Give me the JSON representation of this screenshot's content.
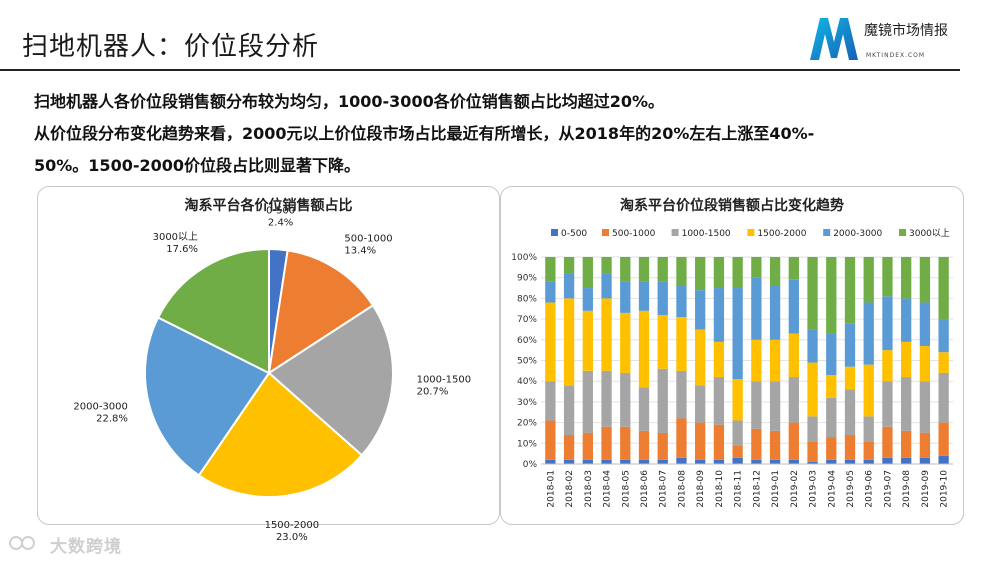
{
  "page": {
    "title": "扫地机器人：价位段分析",
    "logo_text": "魔镜市场情报",
    "logo_sub": "MKTINDEX.COM",
    "paragraphs": [
      "扫地机器人各价位段销售额分布较为均匀，1000-3000各价位销售额占比均超过20%。",
      "从价位段分布变化趋势来看，2000元以上价位段市场占比最近有所增长，从2018年的20%左右上涨至40%-",
      "50%。1500-2000价位段占比则显著下降。"
    ],
    "watermark": "大数跨境"
  },
  "colors": {
    "0-500": "#4472C4",
    "500-1000": "#ED7D31",
    "1000-1500": "#A5A5A5",
    "1500-2000": "#FFC000",
    "2000-3000": "#5B9BD5",
    "3000以上": "#70AD47"
  },
  "chart_data": [
    {
      "type": "pie",
      "title": "淘系平台各价位销售额占比",
      "slices": [
        {
          "label": "0-500",
          "value": 2.4,
          "display": "2.4%"
        },
        {
          "label": "500-1000",
          "value": 13.4,
          "display": "13.4%"
        },
        {
          "label": "1000-1500",
          "value": 20.7,
          "display": "20.7%"
        },
        {
          "label": "1500-2000",
          "value": 23.0,
          "display": "23.0%"
        },
        {
          "label": "2000-3000",
          "value": 22.8,
          "display": "22.8%"
        },
        {
          "label": "3000以上",
          "value": 17.6,
          "display": "17.6%"
        }
      ]
    },
    {
      "type": "bar",
      "stacked": "percent",
      "title": "淘系平台价位段销售额占比变化趋势",
      "categories": [
        "2018-01",
        "2018-02",
        "2018-03",
        "2018-04",
        "2018-05",
        "2018-06",
        "2018-07",
        "2018-08",
        "2018-09",
        "2018-10",
        "2018-11",
        "2018-12",
        "2019-01",
        "2019-02",
        "2019-03",
        "2019-04",
        "2019-05",
        "2019-06",
        "2019-07",
        "2019-08",
        "2019-09",
        "2019-10"
      ],
      "yticks": [
        "0%",
        "10%",
        "20%",
        "30%",
        "40%",
        "50%",
        "60%",
        "70%",
        "80%",
        "90%",
        "100%"
      ],
      "ylim": [
        0,
        100
      ],
      "legend_position": "top",
      "series": [
        {
          "name": "0-500",
          "values": [
            2,
            2,
            2,
            2,
            2,
            2,
            2,
            3,
            2,
            2,
            3,
            2,
            2,
            2,
            1,
            2,
            2,
            2,
            3,
            3,
            3,
            4
          ]
        },
        {
          "name": "500-1000",
          "values": [
            19,
            12,
            13,
            16,
            16,
            14,
            13,
            19,
            18,
            17,
            6,
            15,
            14,
            18,
            10,
            11,
            12,
            9,
            15,
            13,
            12,
            16
          ]
        },
        {
          "name": "1000-1500",
          "values": [
            19,
            24,
            30,
            27,
            26,
            21,
            31,
            23,
            18,
            23,
            12,
            23,
            24,
            22,
            12,
            19,
            22,
            12,
            22,
            26,
            25,
            24
          ]
        },
        {
          "name": "1500-2000",
          "values": [
            38,
            42,
            29,
            35,
            29,
            37,
            26,
            26,
            27,
            17,
            20,
            20,
            20,
            21,
            26,
            11,
            11,
            25,
            15,
            17,
            17,
            10
          ]
        },
        {
          "name": "2000-3000",
          "values": [
            10,
            12,
            11,
            12,
            15,
            14,
            16,
            15,
            19,
            26,
            44,
            30,
            26,
            26,
            16,
            20,
            21,
            30,
            26,
            21,
            21,
            16
          ]
        },
        {
          "name": "3000以上",
          "values": [
            12,
            8,
            15,
            8,
            12,
            12,
            12,
            14,
            16,
            15,
            15,
            10,
            14,
            11,
            35,
            37,
            32,
            22,
            19,
            20,
            22,
            30
          ]
        }
      ]
    }
  ]
}
